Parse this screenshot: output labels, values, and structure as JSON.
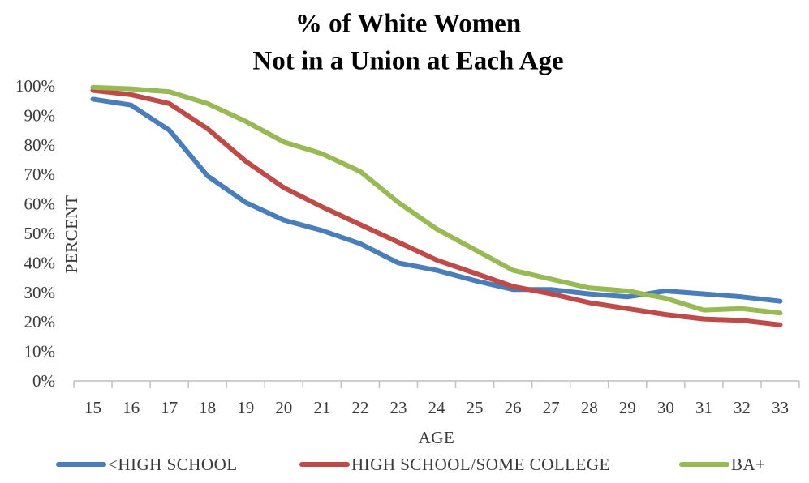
{
  "chart_data": {
    "type": "line",
    "title_lines": [
      "% of White Women",
      "Not in a Union at Each Age"
    ],
    "xlabel": "AGE",
    "ylabel": "PERCENT",
    "x": [
      15,
      16,
      17,
      18,
      19,
      20,
      21,
      22,
      23,
      24,
      25,
      26,
      27,
      28,
      29,
      30,
      31,
      32,
      33
    ],
    "x_tick_labels": [
      "15",
      "16",
      "17",
      "18",
      "19",
      "20",
      "21",
      "22",
      "23",
      "24",
      "25",
      "26",
      "27",
      "28",
      "29",
      "30",
      "31",
      "32",
      "33"
    ],
    "ylim": [
      0,
      100
    ],
    "y_ticks": [
      0,
      10,
      20,
      30,
      40,
      50,
      60,
      70,
      80,
      90,
      100
    ],
    "y_tick_labels": [
      "0%",
      "10%",
      "20%",
      "30%",
      "40%",
      "50%",
      "60%",
      "70%",
      "80%",
      "90%",
      "100%"
    ],
    "grid": false,
    "legend_position": "bottom",
    "series": [
      {
        "name": "<HIGH SCHOOL",
        "color": "#4a7ebb",
        "values": [
          95.5,
          93.5,
          85,
          69.5,
          60.5,
          54.5,
          51,
          46.5,
          40,
          37.5,
          34,
          31,
          31,
          29.5,
          28.5,
          30.5,
          29.5,
          28.5,
          27
        ]
      },
      {
        "name": "HIGH SCHOOL/SOME COLLEGE",
        "color": "#be4b48",
        "values": [
          98.5,
          97,
          94,
          85.5,
          74.5,
          65.5,
          59,
          53,
          47,
          41,
          36.5,
          32,
          29.5,
          26.5,
          24.5,
          22.5,
          21,
          20.5,
          19
        ]
      },
      {
        "name": "BA+",
        "color": "#98b954",
        "values": [
          99.5,
          99,
          98,
          94,
          88,
          81,
          77,
          71,
          60.5,
          51.5,
          44.5,
          37.5,
          34.5,
          31.5,
          30.5,
          28,
          24,
          24.5,
          23
        ]
      }
    ]
  }
}
